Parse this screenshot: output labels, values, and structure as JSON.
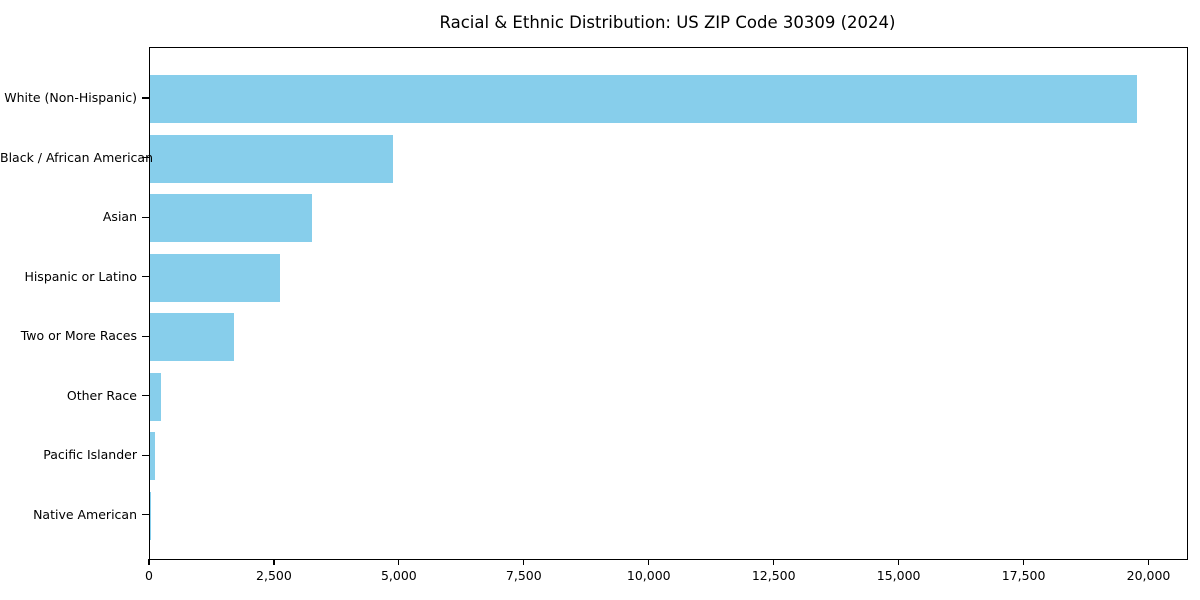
{
  "chart_data": {
    "type": "bar",
    "orientation": "horizontal",
    "title": "Racial & Ethnic Distribution: US ZIP Code 30309 (2024)",
    "categories": [
      "White (Non-Hispanic)",
      "Black / African American",
      "Asian",
      "Hispanic or Latino",
      "Two or More Races",
      "Other Race",
      "Pacific Islander",
      "Native American"
    ],
    "values": [
      19750,
      4860,
      3240,
      2600,
      1680,
      230,
      110,
      30
    ],
    "xlabel": "",
    "ylabel": "",
    "xlim": [
      0,
      20750
    ],
    "xticks": [
      0,
      2500,
      5000,
      7500,
      10000,
      12500,
      15000,
      17500,
      20000
    ],
    "xtick_labels": [
      "0",
      "2,500",
      "5,000",
      "7,500",
      "10,000",
      "12,500",
      "15,000",
      "17,500",
      "20,000"
    ],
    "bar_color": "#87CEEB",
    "text_color": "#000000",
    "background_color": "#ffffff",
    "grid": false,
    "legend": null
  }
}
